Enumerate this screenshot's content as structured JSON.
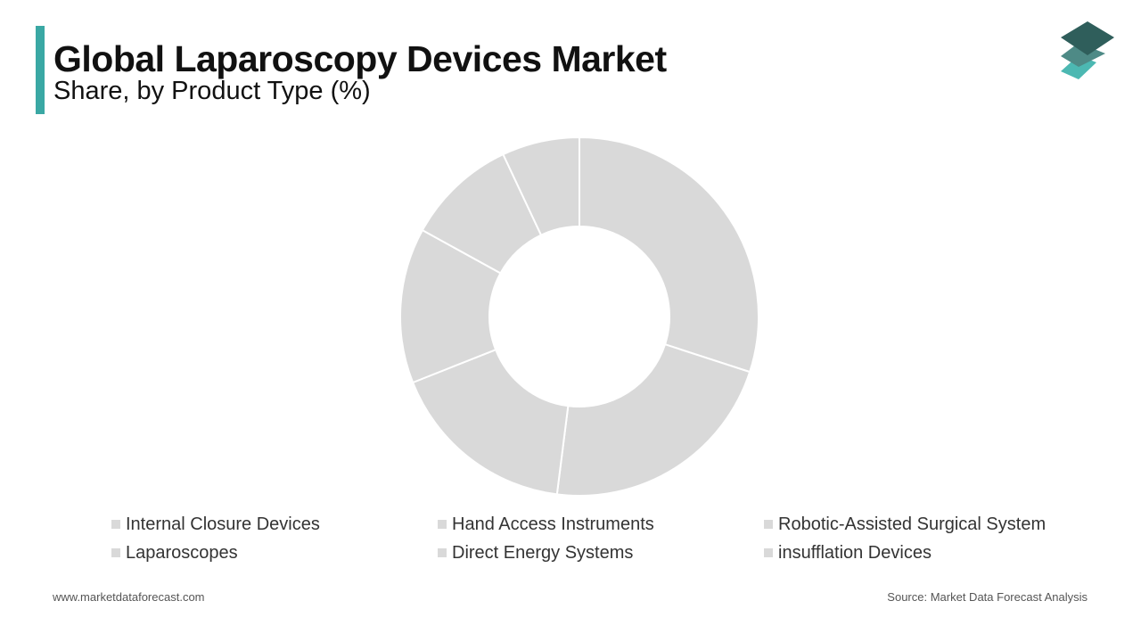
{
  "header": {
    "title": "Global Laparoscopy Devices Market",
    "subtitle": "Share, by Product Type (%)"
  },
  "colors": {
    "accent": "#3aa8a4",
    "slice": "#d9d9d9",
    "slice_border": "#ffffff",
    "legend_swatch": "#d9d9d9",
    "logo_top": "#2f5e5b",
    "logo_middle": "#4e8a86",
    "logo_bottom": "#4cb8b2"
  },
  "chart_data": {
    "type": "pie",
    "donut": true,
    "categories": [
      "Internal Closure Devices",
      "Hand Access Instruments",
      "Robotic-Assisted Surgical System",
      "Laparoscopes",
      "Direct Energy Systems",
      "insufflation Devices"
    ],
    "values": [
      30,
      22,
      17,
      14,
      10,
      7
    ],
    "title": "Global Laparoscopy Devices Market",
    "subtitle": "Share, by Product Type (%)",
    "legend_placement": "bottom",
    "data_labels": false
  },
  "legend": {
    "items": [
      {
        "label": "Internal Closure Devices"
      },
      {
        "label": "Hand Access Instruments"
      },
      {
        "label": "Robotic-Assisted Surgical System"
      },
      {
        "label": "Laparoscopes"
      },
      {
        "label": "Direct Energy Systems"
      },
      {
        "label": "insufflation Devices"
      }
    ]
  },
  "footer": {
    "website": "www.marketdataforecast.com",
    "source": "Source: Market Data Forecast Analysis"
  },
  "logo": {
    "icon": "stacked-layers-icon"
  }
}
